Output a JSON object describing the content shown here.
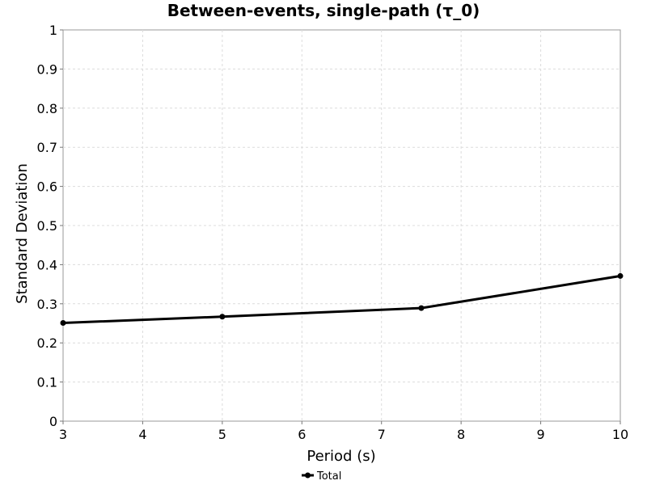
{
  "chart_data": {
    "type": "line",
    "title": "Between-events, single-path (τ_0)",
    "xlabel": "Period (s)",
    "ylabel": "Standard Deviation",
    "xlim": [
      3,
      10
    ],
    "ylim": [
      0,
      1
    ],
    "x_ticks": [
      "3",
      "4",
      "5",
      "6",
      "7",
      "8",
      "9",
      "10"
    ],
    "y_ticks": [
      "0",
      "0.1",
      "0.2",
      "0.3",
      "0.4",
      "0.5",
      "0.6",
      "0.7",
      "0.8",
      "0.9",
      "1"
    ],
    "grid": true,
    "legend_position": "bottom-center",
    "series": [
      {
        "name": "Total",
        "color": "#000000",
        "marker": "circle",
        "x": [
          3,
          5,
          7.5,
          10
        ],
        "y": [
          0.251,
          0.267,
          0.289,
          0.371
        ]
      }
    ]
  }
}
